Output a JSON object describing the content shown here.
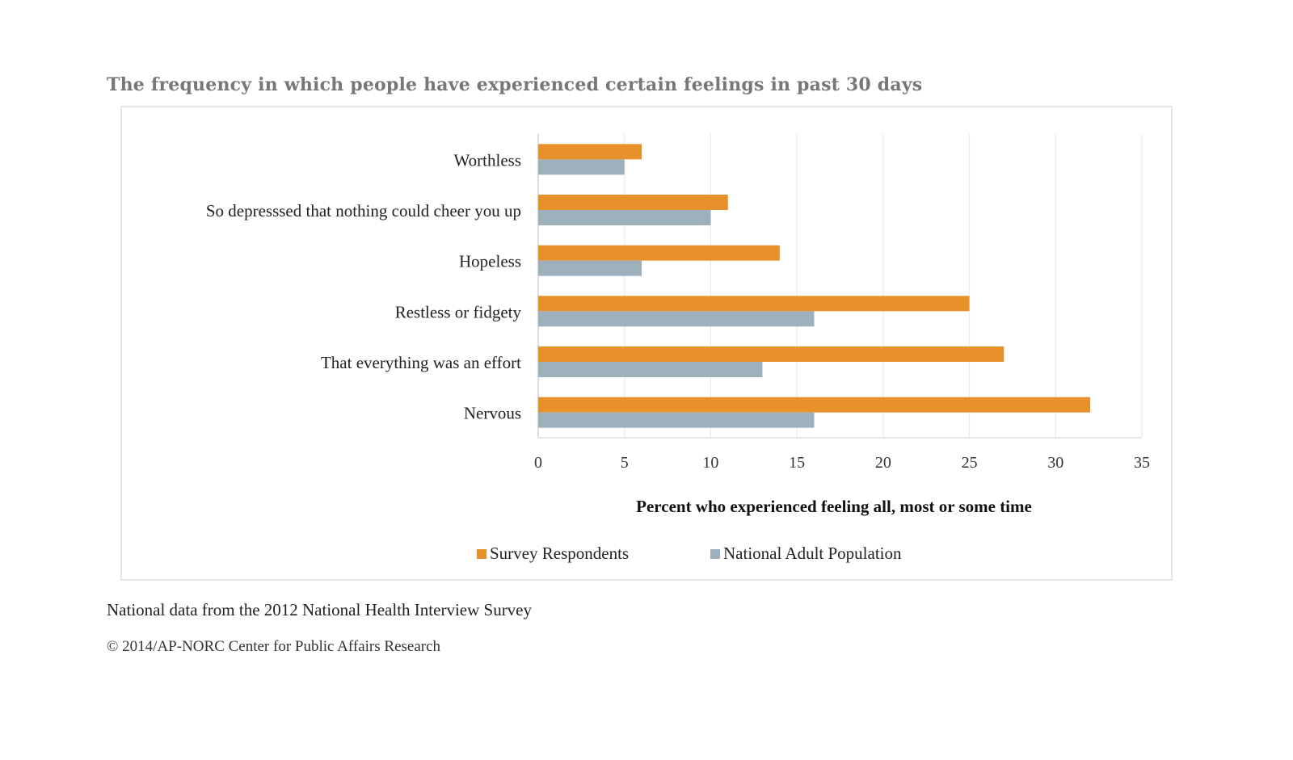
{
  "heading": "The frequency in which people have experienced certain feelings in past 30 days",
  "chart_data": {
    "type": "bar",
    "orientation": "horizontal",
    "categories": [
      "Worthless",
      "So depresssed that nothing could cheer you up",
      "Hopeless",
      "Restless or fidgety",
      "That everything was an effort",
      "Nervous"
    ],
    "series": [
      {
        "name": "Survey Respondents",
        "color": "#E8902A",
        "values": [
          6,
          11,
          14,
          25,
          27,
          32
        ]
      },
      {
        "name": "National Adult Population",
        "color": "#9DB0BB",
        "values": [
          5,
          10,
          6,
          16,
          13,
          16
        ]
      }
    ],
    "xlabel": "Percent who experienced feeling all, most or some time",
    "xlim": [
      0,
      35
    ],
    "xticks": [
      0,
      5,
      10,
      15,
      20,
      25,
      30,
      35
    ],
    "legend_position": "bottom",
    "grid": true
  },
  "footer": {
    "source": "National data from the 2012 National Health Interview Survey",
    "copyright": "© 2014/AP-NORC Center for Public Affairs Research"
  }
}
